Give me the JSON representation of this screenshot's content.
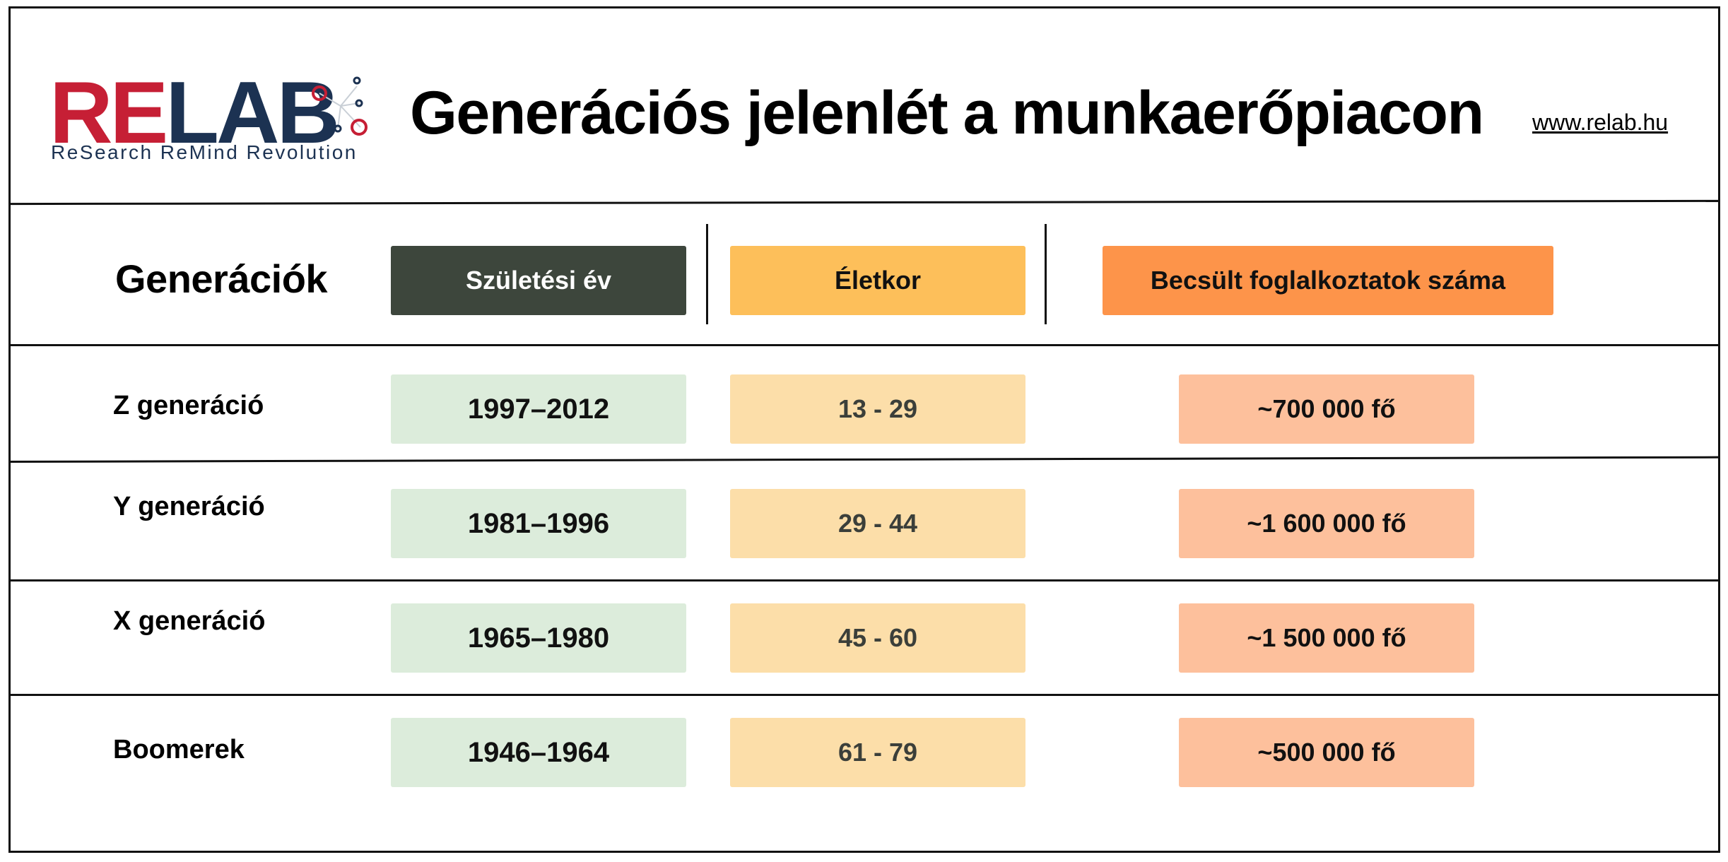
{
  "header": {
    "logo": {
      "brand_red": "RE",
      "brand_blue": "LAB",
      "tagline": "ReSearch ReMind Revolution",
      "icon": "molecule-dots-icon"
    },
    "title": "Generációs jelenlét a munkaerőpiacon",
    "website": "www.relab.hu"
  },
  "table": {
    "row_header": "Generációk",
    "columns": [
      "Születési év",
      "Életkor",
      "Becsült foglalkoztatok száma"
    ],
    "rows": [
      {
        "generation": "Z generáció",
        "birth_years": "1997–2012",
        "age": "13 - 29",
        "employed": "~700 000 fő"
      },
      {
        "generation": "Y generáció",
        "birth_years": "1981–1996",
        "age": "29 - 44",
        "employed": "~1 600 000 fő"
      },
      {
        "generation": "X generáció",
        "birth_years": "1965–1980",
        "age": "45 - 60",
        "employed": "~1 500 000 fő"
      },
      {
        "generation": "Boomerek",
        "birth_years": "1946–1964",
        "age": "61 - 79",
        "employed": "~500 000 fő"
      }
    ]
  },
  "colors": {
    "brand_red": "#c61f35",
    "brand_blue": "#1c3252",
    "birth_header": "#3d463c",
    "age_header": "#fdbf5a",
    "employment_header": "#fd944a",
    "birth_cell": "#dcecdb",
    "age_cell": "#fcdea9",
    "employment_cell": "#fdc09c"
  }
}
